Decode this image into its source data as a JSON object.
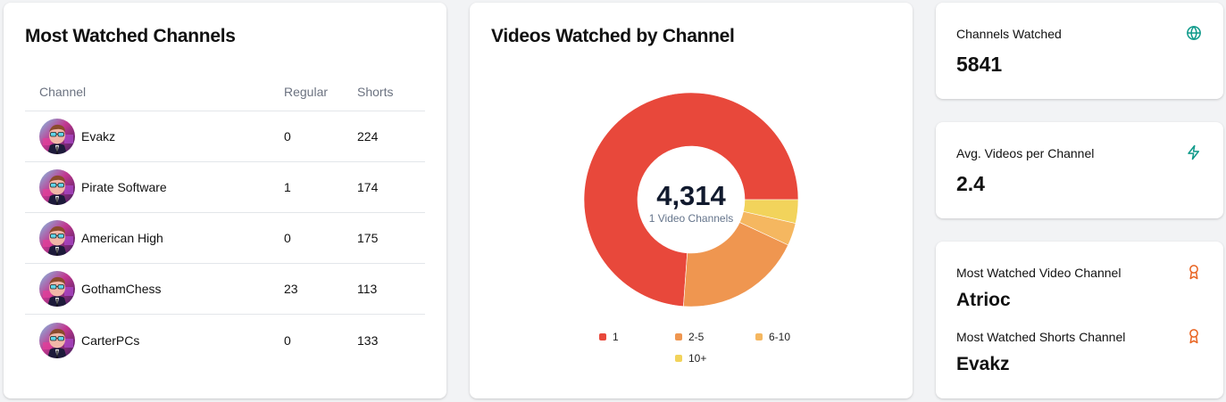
{
  "channels_card": {
    "title": "Most Watched Channels",
    "columns": [
      "Channel",
      "Regular",
      "Shorts"
    ],
    "rows": [
      {
        "channel": "Evakz",
        "regular": "0",
        "shorts": "224"
      },
      {
        "channel": "Pirate Software",
        "regular": "1",
        "shorts": "174"
      },
      {
        "channel": "American High",
        "regular": "0",
        "shorts": "175"
      },
      {
        "channel": "GothamChess",
        "regular": "23",
        "shorts": "113"
      },
      {
        "channel": "CarterPCs",
        "regular": "0",
        "shorts": "133"
      }
    ]
  },
  "donut_card": {
    "title": "Videos Watched by Channel",
    "center_value": "4,314",
    "center_label": "1 Video Channels",
    "legend": [
      {
        "label": "1",
        "color": "#e8483b"
      },
      {
        "label": "2-5",
        "color": "#ef9650"
      },
      {
        "label": "6-10",
        "color": "#f5b760"
      },
      {
        "label": "10+",
        "color": "#f2d35b"
      }
    ]
  },
  "stats": {
    "channels_watched": {
      "label": "Channels Watched",
      "value": "5841",
      "icon": "globe-icon",
      "icon_color": "#0f9a8a"
    },
    "avg_videos": {
      "label": "Avg. Videos per Channel",
      "value": "2.4",
      "icon": "lightning-icon",
      "icon_color": "#0f9a8a"
    },
    "most_watched_video": {
      "label": "Most Watched Video Channel",
      "value": "Atrioc",
      "icon": "award-icon",
      "icon_color": "#e8621f"
    },
    "most_watched_shorts": {
      "label": "Most Watched Shorts Channel",
      "value": "Evakz",
      "icon": "award-icon",
      "icon_color": "#e8621f"
    }
  },
  "chart_data": {
    "type": "pie",
    "title": "Videos Watched by Channel",
    "subtype": "donut",
    "categories": [
      "1",
      "2-5",
      "6-10",
      "10+"
    ],
    "values": [
      4314,
      1120,
      200,
      207
    ],
    "colors": [
      "#e8483b",
      "#ef9650",
      "#f5b760",
      "#f2d35b"
    ],
    "center_annotation": {
      "value": "4,314",
      "label": "1 Video Channels"
    },
    "legend_position": "bottom",
    "total": 5841
  }
}
